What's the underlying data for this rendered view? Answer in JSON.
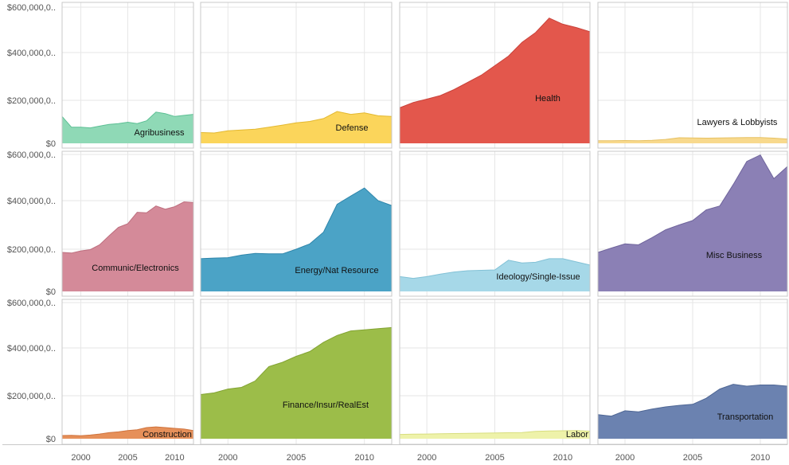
{
  "chart_data": {
    "type": "area",
    "layout": "small-multiples",
    "x": [
      1998,
      1999,
      2000,
      2001,
      2002,
      2003,
      2004,
      2005,
      2006,
      2007,
      2008,
      2009,
      2010,
      2011,
      2012
    ],
    "xticks": [
      2000,
      2005,
      2010
    ],
    "xtick_labels": [
      "2000",
      "2005",
      "2010"
    ],
    "xlim": [
      1998,
      2012
    ],
    "ylim": [
      0,
      600000
    ],
    "yticks": [
      0,
      200000,
      400000,
      600000
    ],
    "ytick_labels": [
      "$0",
      "$200,000,0..",
      "$400,000,0..",
      "$600,000,0.."
    ],
    "grid": true,
    "title": "",
    "xlabel": "",
    "ylabel": "",
    "series": [
      {
        "name": "Agribusiness",
        "color": "#8fd9b6",
        "line_color": "#5cbf94",
        "values": [
          125000,
          75000,
          75000,
          72000,
          80000,
          88000,
          92000,
          98000,
          92000,
          105000,
          145000,
          138000,
          125000,
          130000,
          135000
        ]
      },
      {
        "name": "Defense",
        "color": "#fbd55b",
        "line_color": "#e3b830",
        "values": [
          50000,
          48000,
          58000,
          62000,
          66000,
          75000,
          85000,
          95000,
          102000,
          115000,
          148000,
          135000,
          142000,
          128000,
          125000
        ]
      },
      {
        "name": "Health",
        "color": "#e3574c",
        "line_color": "#c9423a",
        "values": [
          165000,
          190000,
          205000,
          220000,
          245000,
          275000,
          305000,
          345000,
          385000,
          445000,
          488000,
          552000,
          525000,
          510000,
          492000
        ]
      },
      {
        "name": "Lawyers & Lobbyists",
        "color": "#f8d98d",
        "line_color": "#e6c163",
        "values": [
          12000,
          12000,
          13000,
          12000,
          14000,
          18000,
          26000,
          25000,
          24000,
          25000,
          26000,
          27000,
          27000,
          24000,
          20000
        ]
      },
      {
        "name": "Communic/Electronics",
        "color": "#d48a99",
        "line_color": "#bd6e7e",
        "values": [
          185000,
          182000,
          192000,
          198000,
          218000,
          255000,
          290000,
          305000,
          352000,
          350000,
          378000,
          365000,
          375000,
          395000,
          392000
        ]
      },
      {
        "name": "Energy/Nat Resource",
        "color": "#4ba3c6",
        "line_color": "#2f86ab",
        "values": [
          155000,
          158000,
          160000,
          172000,
          180000,
          178000,
          178000,
          200000,
          222000,
          270000,
          385000,
          420000,
          455000,
          400000,
          380000
        ]
      },
      {
        "name": "Ideology/Single-Issue",
        "color": "#a6d8e8",
        "line_color": "#82c1d6",
        "values": [
          70000,
          62000,
          70000,
          82000,
          92000,
          98000,
          100000,
          102000,
          148000,
          135000,
          138000,
          155000,
          155000,
          140000,
          125000
        ]
      },
      {
        "name": "Misc Business",
        "color": "#8b80b5",
        "line_color": "#6f649c",
        "values": [
          185000,
          205000,
          222000,
          218000,
          248000,
          280000,
          300000,
          318000,
          362000,
          378000,
          470000,
          570000,
          598000,
          495000,
          548000
        ]
      },
      {
        "name": "Construction",
        "color": "#e6905a",
        "line_color": "#cf733d",
        "values": [
          15000,
          16000,
          14000,
          17000,
          22000,
          28000,
          32000,
          38000,
          42000,
          52000,
          55000,
          52000,
          48000,
          45000,
          38000
        ]
      },
      {
        "name": "Finance/Insur/RealEst",
        "color": "#9cbd49",
        "line_color": "#82a332",
        "values": [
          205000,
          212000,
          228000,
          235000,
          262000,
          322000,
          340000,
          365000,
          385000,
          425000,
          455000,
          475000,
          480000,
          485000,
          490000
        ]
      },
      {
        "name": "Labor",
        "color": "#eef2aa",
        "line_color": "#d8de7e",
        "values": [
          20000,
          21000,
          22000,
          23000,
          24000,
          25000,
          26000,
          27000,
          28000,
          29000,
          34000,
          36000,
          37000,
          38000,
          35000
        ]
      },
      {
        "name": "Transportation",
        "color": "#6b82b0",
        "line_color": "#4e6694",
        "values": [
          112000,
          105000,
          130000,
          125000,
          138000,
          148000,
          155000,
          160000,
          188000,
          228000,
          248000,
          240000,
          245000,
          245000,
          240000
        ]
      }
    ]
  }
}
